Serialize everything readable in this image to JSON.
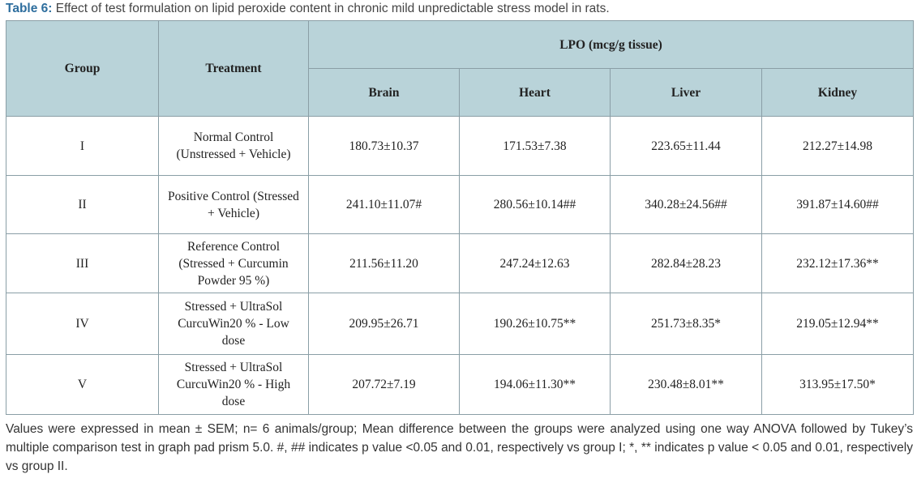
{
  "caption": {
    "label": "Table 6:",
    "text": "Effect of test formulation on lipid peroxide content in chronic mild unpredictable stress model in rats."
  },
  "table": {
    "headers": {
      "group": "Group",
      "treatment": "Treatment",
      "lpo": "LPO (mcg/g tissue)",
      "organs": [
        "Brain",
        "Heart",
        "Liver",
        "Kidney"
      ]
    },
    "rows": [
      [
        "I",
        "Normal Control (Unstressed + Vehicle)",
        "180.73±10.37",
        "171.53±7.38",
        "223.65±11.44",
        "212.27±14.98"
      ],
      [
        "II",
        "Positive Control (Stressed + Vehicle)",
        "241.10±11.07#",
        "280.56±10.14##",
        "340.28±24.56##",
        "391.87±14.60##"
      ],
      [
        "III",
        "Reference Control (Stressed + Curcumin Powder 95 %)",
        "211.56±11.20",
        "247.24±12.63",
        "282.84±28.23",
        "232.12±17.36**"
      ],
      [
        "IV",
        "Stressed + UltraSol CurcuWin20 % - Low dose",
        "209.95±26.71",
        "190.26±10.75**",
        "251.73±8.35*",
        "219.05±12.94**"
      ],
      [
        "V",
        "Stressed + UltraSol CurcuWin20 % - High dose",
        "207.72±7.19",
        "194.06±11.30**",
        "230.48±8.01**",
        "313.95±17.50*"
      ]
    ]
  },
  "footnote": "Values were expressed in mean ± SEM; n= 6 animals/group; Mean difference between the groups were analyzed using one way ANOVA followed by Tukey’s multiple comparison test in graph pad prism 5.0. #, ## indicates p value <0.05 and 0.01, respectively vs group I; *, ** indicates p value < 0.05 and 0.01, respectively vs group II."
}
